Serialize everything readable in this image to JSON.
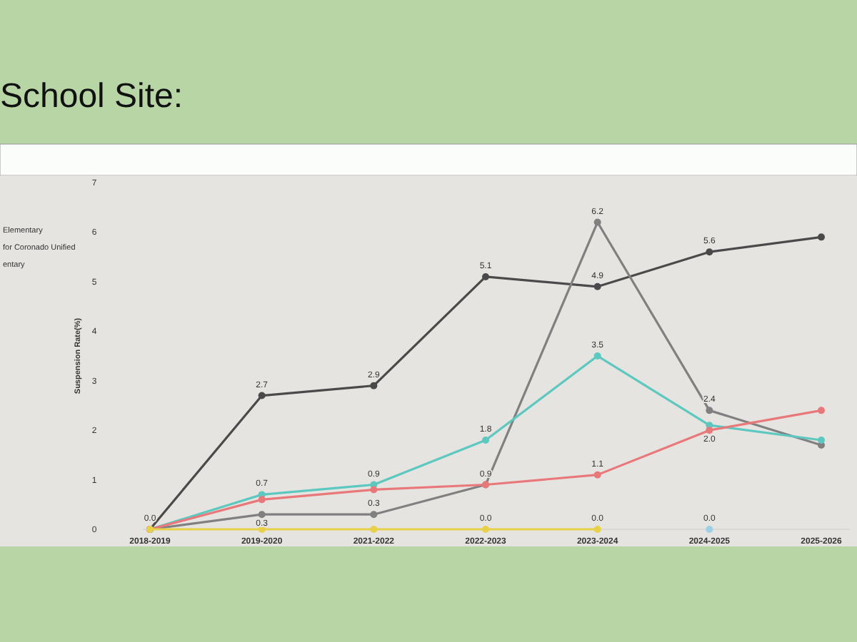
{
  "chart_data": {
    "type": "line",
    "title": "School Site:",
    "ylabel": "Suspension Rate(%)",
    "categories": [
      "2018-2019",
      "2019-2020",
      "2021-2022",
      "2022-2023",
      "2023-2024",
      "2024-2025",
      "2025-2026"
    ],
    "ylim": [
      0,
      7
    ],
    "yticks": [
      0,
      1,
      2,
      3,
      4,
      5,
      6,
      7
    ],
    "grid": false,
    "marker": "circle",
    "line_style": "solid",
    "annotations": [
      "Elementary",
      "for Coronado Unified",
      "entary"
    ],
    "series": [
      {
        "color": "#4a4a4a",
        "values": [
          0,
          2.7,
          2.9,
          5.1,
          4.9,
          5.6,
          5.9
        ],
        "value_labels": [
          "0.0",
          "2.7",
          "2.9",
          "5.1",
          "4.9",
          "5.6",
          null
        ]
      },
      {
        "color": "#808080",
        "values": [
          0,
          0.3,
          0.3,
          0.9,
          6.2,
          2.4,
          1.7
        ],
        "value_labels": [
          null,
          "0.3",
          "0.3",
          "0.9",
          "6.2",
          "2.4",
          null
        ]
      },
      {
        "color": "#5cc8c0",
        "values": [
          0,
          0.7,
          0.9,
          1.8,
          3.5,
          2.1,
          1.8
        ],
        "value_labels": [
          null,
          "0.7",
          "0.9",
          "1.8",
          "3.5",
          null,
          null
        ]
      },
      {
        "color": "#e8787a",
        "values": [
          0,
          0.6,
          0.8,
          0.9,
          1.1,
          2.0,
          2.4
        ],
        "value_labels": [
          null,
          null,
          null,
          null,
          "1.1",
          "2.0",
          null
        ]
      },
      {
        "color": "#e8d048",
        "values": [
          0,
          0,
          0,
          0,
          0,
          null,
          null
        ],
        "value_labels": [
          null,
          null,
          null,
          "0.0",
          "0.0",
          null,
          null
        ]
      },
      {
        "color": "#9ad0e8",
        "values": [
          null,
          null,
          null,
          null,
          null,
          0,
          null
        ],
        "value_labels": [
          null,
          null,
          null,
          null,
          null,
          "0.0",
          null
        ]
      }
    ]
  }
}
